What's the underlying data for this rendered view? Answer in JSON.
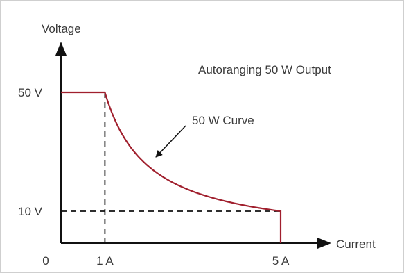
{
  "chart_data": {
    "type": "line",
    "title": "",
    "xlabel": "Current",
    "ylabel": "Voltage",
    "annotations": {
      "header": "Autoranging 50 W Output",
      "curve_label": "50 W Curve"
    },
    "origin_label": "0",
    "x_ticks": [
      {
        "value": 1,
        "label": "1 A"
      },
      {
        "value": 5,
        "label": "5 A"
      }
    ],
    "y_ticks": [
      {
        "value": 10,
        "label": "10 V"
      },
      {
        "value": 50,
        "label": "50 V"
      }
    ],
    "xlim": [
      0,
      6.8
    ],
    "ylim": [
      0,
      65
    ],
    "series": [
      {
        "color": "#a01f2d",
        "description_points": {
          "x": [
            0,
            1,
            1.25,
            1.5,
            2,
            2.5,
            3,
            3.5,
            4,
            4.5,
            5,
            5
          ],
          "y": [
            50,
            50,
            40,
            33.3,
            25,
            20,
            16.7,
            14.3,
            12.5,
            11.1,
            10,
            0
          ]
        }
      }
    ],
    "reference_lines": [
      {
        "type": "vertical",
        "x": 1,
        "from_y": 0,
        "to_y": 50,
        "style": "dashed"
      },
      {
        "type": "horizontal",
        "y": 10,
        "from_x": 0,
        "to_x": 5,
        "style": "dashed"
      }
    ],
    "colors": {
      "curve": "#a01f2d",
      "axis": "#111111",
      "text": "#3a3a3a"
    }
  }
}
